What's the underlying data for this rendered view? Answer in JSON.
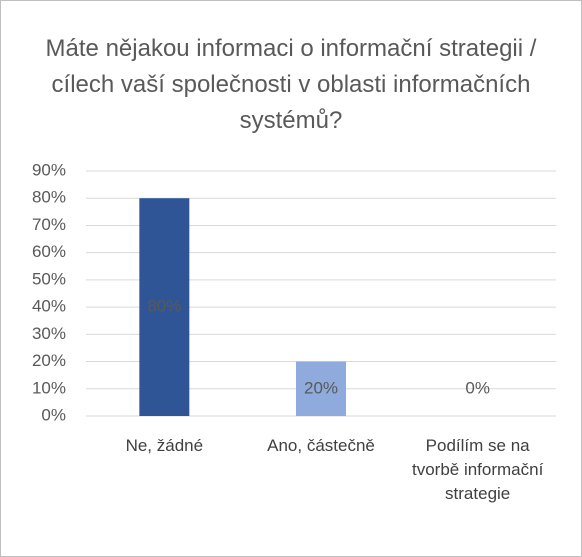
{
  "chart_data": {
    "type": "bar",
    "title": "Máte nějakou informaci o informační strategii / cílech vaší společnosti v oblasti informačních systémů?",
    "categories": [
      "Ne, žádné",
      "Ano, částečně",
      "Podílím se na tvorbě informační strategie"
    ],
    "values": [
      80,
      20,
      0
    ],
    "value_labels": [
      "80%",
      "20%",
      "0%"
    ],
    "colors": [
      "#2f5597",
      "#8faadc",
      "#8faadc"
    ],
    "ylim": [
      0,
      90
    ],
    "yticks": [
      {
        "value": 0,
        "label": "0%"
      },
      {
        "value": 10,
        "label": "10%"
      },
      {
        "value": 20,
        "label": "20%"
      },
      {
        "value": 30,
        "label": "30%"
      },
      {
        "value": 40,
        "label": "40%"
      },
      {
        "value": 50,
        "label": "50%"
      },
      {
        "value": 60,
        "label": "60%"
      },
      {
        "value": 70,
        "label": "70%"
      },
      {
        "value": 80,
        "label": "80%"
      },
      {
        "value": 90,
        "label": "90%"
      }
    ],
    "grid": true
  }
}
